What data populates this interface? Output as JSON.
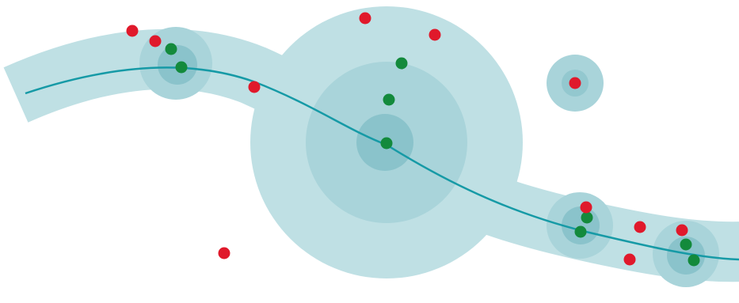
{
  "colors": {
    "background": "#ffffff",
    "band": "#bfe0e4",
    "zone_light": "#a9d4da",
    "zone_mid": "#93c8cf",
    "zone_core": "#7fbcc4",
    "curve": "#169aa6",
    "inlier": "#138a3c",
    "outlier": "#e0192b"
  },
  "legend": []
}
